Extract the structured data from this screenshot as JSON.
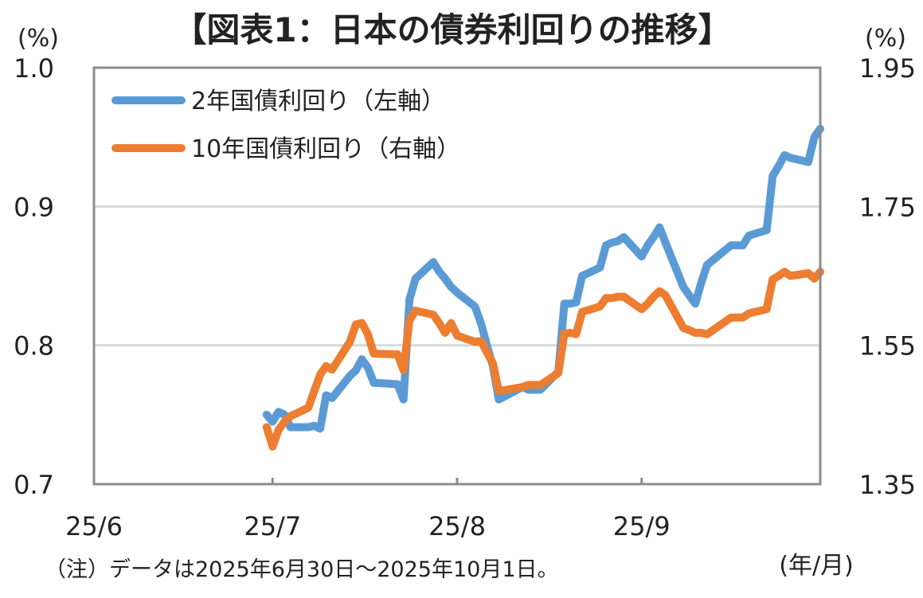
{
  "chart_data": {
    "type": "line",
    "title": "【図表1：日本の債券利回りの推移】",
    "left_axis": {
      "unit_label": "(%)",
      "range": [
        0.7,
        1.0
      ],
      "ticks": [
        "1.0",
        "0.9",
        "0.8",
        "0.7"
      ]
    },
    "right_axis": {
      "unit_label": "(%)",
      "range": [
        1.35,
        1.95
      ],
      "ticks": [
        "1.95",
        "1.75",
        "1.55",
        "1.35"
      ]
    },
    "x_axis": {
      "tick_labels": [
        "25/6",
        "25/7",
        "25/8",
        "25/9"
      ],
      "unit_label": "(年/月)"
    },
    "grid": "horizontal",
    "legend_position": "top-left",
    "note": "（注）データは2025年6月30日～2025年10月1日。",
    "series": [
      {
        "name": "2年国債利回り（左軸）",
        "axis": "left",
        "color": "#5B9BD5",
        "points": [
          [
            "2025-06-30",
            0.75
          ],
          [
            "2025-07-01",
            0.745
          ],
          [
            "2025-07-02",
            0.752
          ],
          [
            "2025-07-03",
            0.75
          ],
          [
            "2025-07-04",
            0.741
          ],
          [
            "2025-07-07",
            0.741
          ],
          [
            "2025-07-08",
            0.742
          ],
          [
            "2025-07-09",
            0.74
          ],
          [
            "2025-07-10",
            0.764
          ],
          [
            "2025-07-11",
            0.762
          ],
          [
            "2025-07-14",
            0.778
          ],
          [
            "2025-07-15",
            0.782
          ],
          [
            "2025-07-16",
            0.79
          ],
          [
            "2025-07-17",
            0.784
          ],
          [
            "2025-07-18",
            0.773
          ],
          [
            "2025-07-22",
            0.772
          ],
          [
            "2025-07-23",
            0.761
          ],
          [
            "2025-07-24",
            0.833
          ],
          [
            "2025-07-25",
            0.848
          ],
          [
            "2025-07-28",
            0.86
          ],
          [
            "2025-07-29",
            0.853
          ],
          [
            "2025-07-30",
            0.848
          ],
          [
            "2025-07-31",
            0.842
          ],
          [
            "2025-08-01",
            0.838
          ],
          [
            "2025-08-04",
            0.828
          ],
          [
            "2025-08-05",
            0.816
          ],
          [
            "2025-08-06",
            0.8
          ],
          [
            "2025-08-07",
            0.785
          ],
          [
            "2025-08-08",
            0.761
          ],
          [
            "2025-08-12",
            0.77
          ],
          [
            "2025-08-13",
            0.768
          ],
          [
            "2025-08-14",
            0.768
          ],
          [
            "2025-08-15",
            0.768
          ],
          [
            "2025-08-18",
            0.781
          ],
          [
            "2025-08-19",
            0.83
          ],
          [
            "2025-08-20",
            0.83
          ],
          [
            "2025-08-21",
            0.831
          ],
          [
            "2025-08-22",
            0.85
          ],
          [
            "2025-08-25",
            0.856
          ],
          [
            "2025-08-26",
            0.872
          ],
          [
            "2025-08-27",
            0.874
          ],
          [
            "2025-08-28",
            0.875
          ],
          [
            "2025-08-29",
            0.878
          ],
          [
            "2025-09-01",
            0.864
          ],
          [
            "2025-09-02",
            0.872
          ],
          [
            "2025-09-03",
            0.878
          ],
          [
            "2025-09-04",
            0.885
          ],
          [
            "2025-09-05",
            0.874
          ],
          [
            "2025-09-08",
            0.842
          ],
          [
            "2025-09-09",
            0.836
          ],
          [
            "2025-09-10",
            0.83
          ],
          [
            "2025-09-11",
            0.845
          ],
          [
            "2025-09-12",
            0.858
          ],
          [
            "2025-09-16",
            0.872
          ],
          [
            "2025-09-17",
            0.872
          ],
          [
            "2025-09-18",
            0.872
          ],
          [
            "2025-09-19",
            0.879
          ],
          [
            "2025-09-22",
            0.883
          ],
          [
            "2025-09-23",
            0.922
          ],
          [
            "2025-09-24",
            0.929
          ],
          [
            "2025-09-25",
            0.937
          ],
          [
            "2025-09-26",
            0.935
          ],
          [
            "2025-09-29",
            0.932
          ],
          [
            "2025-09-30",
            0.95
          ],
          [
            "2025-10-01",
            0.956
          ]
        ]
      },
      {
        "name": "10年国債利回り（右軸）",
        "axis": "right",
        "color": "#ED7D31",
        "points": [
          [
            "2025-06-30",
            1.432
          ],
          [
            "2025-07-01",
            1.404
          ],
          [
            "2025-07-02",
            1.428
          ],
          [
            "2025-07-03",
            1.44
          ],
          [
            "2025-07-04",
            1.448
          ],
          [
            "2025-07-07",
            1.46
          ],
          [
            "2025-07-08",
            1.484
          ],
          [
            "2025-07-09",
            1.508
          ],
          [
            "2025-07-10",
            1.52
          ],
          [
            "2025-07-11",
            1.515
          ],
          [
            "2025-07-14",
            1.555
          ],
          [
            "2025-07-15",
            1.58
          ],
          [
            "2025-07-16",
            1.582
          ],
          [
            "2025-07-17",
            1.566
          ],
          [
            "2025-07-18",
            1.538
          ],
          [
            "2025-07-22",
            1.537
          ],
          [
            "2025-07-23",
            1.514
          ],
          [
            "2025-07-24",
            1.586
          ],
          [
            "2025-07-25",
            1.6
          ],
          [
            "2025-07-28",
            1.594
          ],
          [
            "2025-07-29",
            1.582
          ],
          [
            "2025-07-30",
            1.568
          ],
          [
            "2025-07-31",
            1.582
          ],
          [
            "2025-08-01",
            1.564
          ],
          [
            "2025-08-04",
            1.555
          ],
          [
            "2025-08-05",
            1.556
          ],
          [
            "2025-08-06",
            1.54
          ],
          [
            "2025-08-07",
            1.524
          ],
          [
            "2025-08-08",
            1.484
          ],
          [
            "2025-08-12",
            1.49
          ],
          [
            "2025-08-13",
            1.493
          ],
          [
            "2025-08-14",
            1.493
          ],
          [
            "2025-08-15",
            1.493
          ],
          [
            "2025-08-18",
            1.51
          ],
          [
            "2025-08-19",
            1.567
          ],
          [
            "2025-08-20",
            1.568
          ],
          [
            "2025-08-21",
            1.566
          ],
          [
            "2025-08-22",
            1.598
          ],
          [
            "2025-08-25",
            1.606
          ],
          [
            "2025-08-26",
            1.618
          ],
          [
            "2025-08-27",
            1.618
          ],
          [
            "2025-08-28",
            1.62
          ],
          [
            "2025-08-29",
            1.62
          ],
          [
            "2025-09-01",
            1.602
          ],
          [
            "2025-09-02",
            1.61
          ],
          [
            "2025-09-03",
            1.62
          ],
          [
            "2025-09-04",
            1.628
          ],
          [
            "2025-09-05",
            1.622
          ],
          [
            "2025-09-08",
            1.575
          ],
          [
            "2025-09-09",
            1.572
          ],
          [
            "2025-09-10",
            1.568
          ],
          [
            "2025-09-11",
            1.568
          ],
          [
            "2025-09-12",
            1.566
          ],
          [
            "2025-09-16",
            1.59
          ],
          [
            "2025-09-17",
            1.59
          ],
          [
            "2025-09-18",
            1.59
          ],
          [
            "2025-09-19",
            1.596
          ],
          [
            "2025-09-22",
            1.602
          ],
          [
            "2025-09-23",
            1.645
          ],
          [
            "2025-09-24",
            1.65
          ],
          [
            "2025-09-25",
            1.656
          ],
          [
            "2025-09-26",
            1.65
          ],
          [
            "2025-09-29",
            1.654
          ],
          [
            "2025-09-30",
            1.646
          ],
          [
            "2025-10-01",
            1.656
          ]
        ]
      }
    ]
  }
}
